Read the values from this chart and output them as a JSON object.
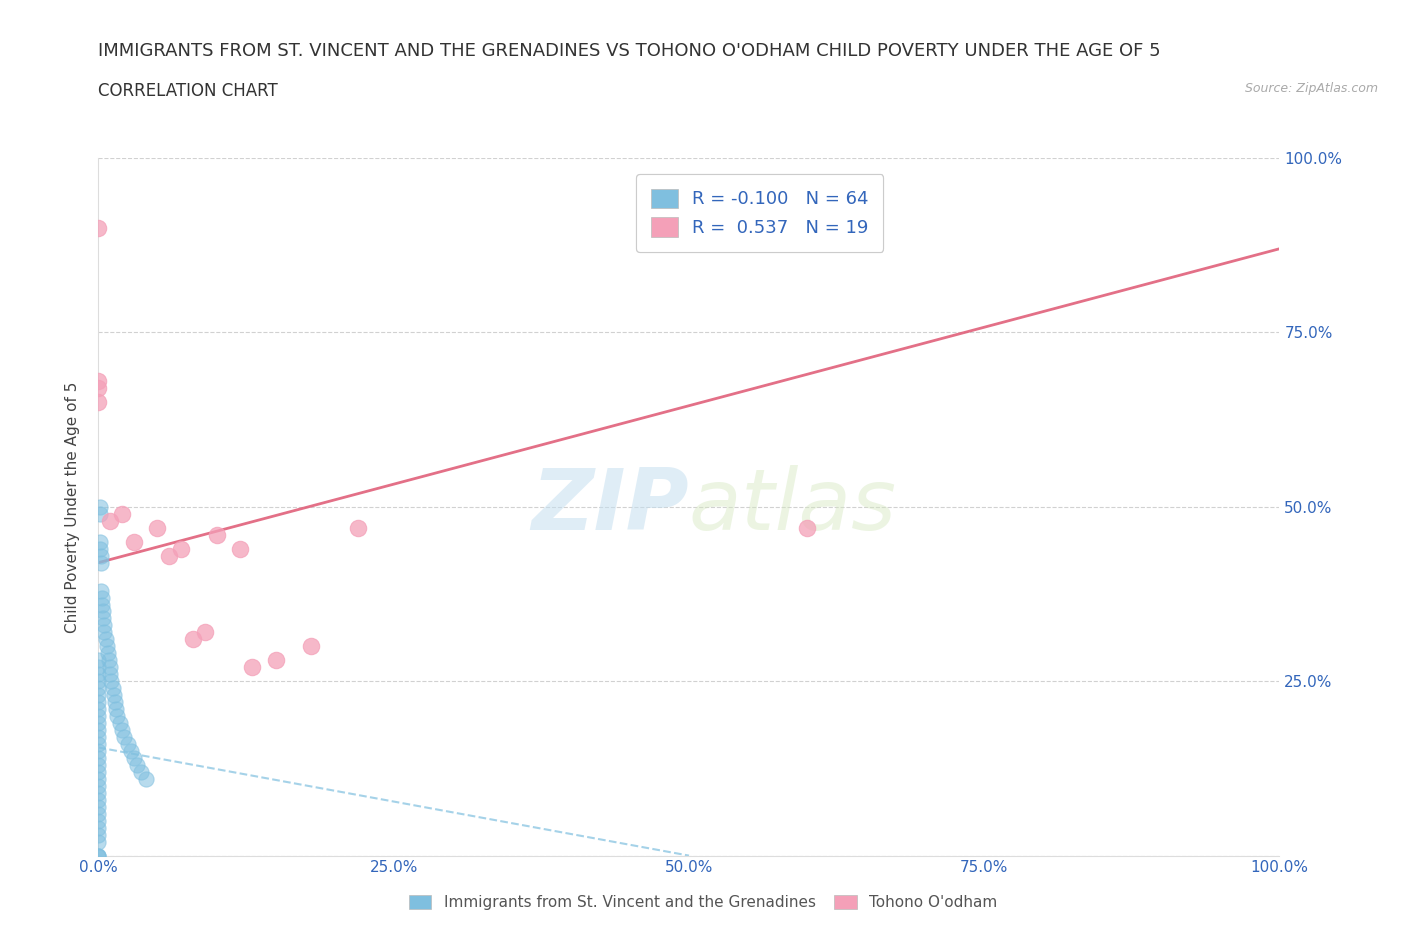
{
  "title": "IMMIGRANTS FROM ST. VINCENT AND THE GRENADINES VS TOHONO O'ODHAM CHILD POVERTY UNDER THE AGE OF 5",
  "subtitle": "CORRELATION CHART",
  "source": "Source: ZipAtlas.com",
  "ylabel": "Child Poverty Under the Age of 5",
  "xlim": [
    0.0,
    1.0
  ],
  "ylim": [
    0.0,
    1.0
  ],
  "xticks": [
    0.0,
    0.25,
    0.5,
    0.75,
    1.0
  ],
  "yticks": [
    0.0,
    0.25,
    0.5,
    0.75,
    1.0
  ],
  "xtick_labels": [
    "0.0%",
    "25.0%",
    "50.0%",
    "75.0%",
    "100.0%"
  ],
  "right_ytick_labels": [
    "",
    "25.0%",
    "50.0%",
    "75.0%",
    "100.0%"
  ],
  "blue_R": -0.1,
  "blue_N": 64,
  "pink_R": 0.537,
  "pink_N": 19,
  "blue_color": "#7fbfdf",
  "pink_color": "#f4a0b8",
  "pink_line_color": "#e0607a",
  "blue_line_color": "#7fbfdf",
  "tick_label_color": "#3366bb",
  "legend_label_blue": "Immigrants from St. Vincent and the Grenadines",
  "legend_label_pink": "Tohono O'odham",
  "watermark_zip": "ZIP",
  "watermark_atlas": "atlas",
  "title_fontsize": 13,
  "blue_scatter_x": [
    0.0,
    0.0,
    0.0,
    0.0,
    0.0,
    0.0,
    0.0,
    0.0,
    0.0,
    0.0,
    0.0,
    0.0,
    0.0,
    0.0,
    0.0,
    0.0,
    0.0,
    0.0,
    0.0,
    0.0,
    0.0,
    0.0,
    0.0,
    0.0,
    0.0,
    0.0,
    0.0,
    0.0,
    0.0,
    0.0,
    0.001,
    0.001,
    0.001,
    0.001,
    0.002,
    0.002,
    0.002,
    0.003,
    0.003,
    0.004,
    0.004,
    0.005,
    0.005,
    0.006,
    0.007,
    0.008,
    0.009,
    0.01,
    0.01,
    0.011,
    0.012,
    0.013,
    0.014,
    0.015,
    0.016,
    0.018,
    0.02,
    0.022,
    0.025,
    0.028,
    0.03,
    0.033,
    0.036,
    0.04
  ],
  "blue_scatter_y": [
    0.0,
    0.0,
    0.0,
    0.02,
    0.03,
    0.04,
    0.05,
    0.06,
    0.07,
    0.08,
    0.09,
    0.1,
    0.11,
    0.12,
    0.13,
    0.14,
    0.15,
    0.16,
    0.17,
    0.18,
    0.19,
    0.2,
    0.21,
    0.22,
    0.23,
    0.24,
    0.25,
    0.26,
    0.27,
    0.28,
    0.49,
    0.5,
    0.45,
    0.44,
    0.43,
    0.42,
    0.38,
    0.37,
    0.36,
    0.35,
    0.34,
    0.33,
    0.32,
    0.31,
    0.3,
    0.29,
    0.28,
    0.27,
    0.26,
    0.25,
    0.24,
    0.23,
    0.22,
    0.21,
    0.2,
    0.19,
    0.18,
    0.17,
    0.16,
    0.15,
    0.14,
    0.13,
    0.12,
    0.11
  ],
  "pink_scatter_x": [
    0.0,
    0.0,
    0.0,
    0.01,
    0.02,
    0.03,
    0.05,
    0.06,
    0.07,
    0.08,
    0.09,
    0.1,
    0.12,
    0.13,
    0.15,
    0.18,
    0.22,
    0.6,
    0.0
  ],
  "pink_scatter_y": [
    0.67,
    0.68,
    0.9,
    0.48,
    0.49,
    0.45,
    0.47,
    0.43,
    0.44,
    0.31,
    0.32,
    0.46,
    0.44,
    0.27,
    0.28,
    0.3,
    0.47,
    0.47,
    0.65
  ],
  "pink_trendline_x0": 0.0,
  "pink_trendline_y0": 0.42,
  "pink_trendline_x1": 1.0,
  "pink_trendline_y1": 0.87,
  "blue_trendline_x0": 0.0,
  "blue_trendline_y0": 0.155,
  "blue_trendline_x1": 0.5,
  "blue_trendline_y1": 0.0
}
